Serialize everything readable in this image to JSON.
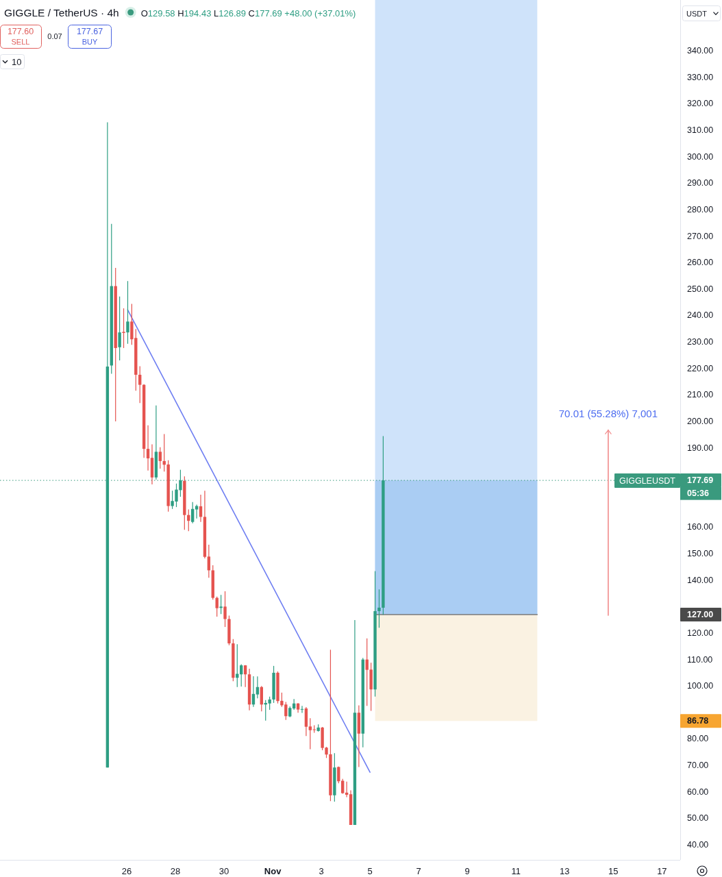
{
  "chart_data": {
    "type": "candlestick",
    "title": "GIGGLE / TetherUS · 4h",
    "x": [
      "--10-25T05:00",
      "--10-25T09:00",
      "--10-25T13:00",
      "--10-25T17:00",
      "--10-25T21:00",
      "--10-26T01:00",
      "--10-26T05:00",
      "--10-26T09:00",
      "--10-26T13:00",
      "--10-26T17:00",
      "--10-26T21:00",
      "--10-27T01:00",
      "--10-27T05:00",
      "--10-27T09:00",
      "--10-27T13:00",
      "--10-27T17:00",
      "--10-27T21:00",
      "--10-28T01:00",
      "--10-28T05:00",
      "--10-28T09:00",
      "--10-28T13:00",
      "--10-28T17:00",
      "--10-28T21:00",
      "--10-29T01:00",
      "--10-29T05:00",
      "--10-29T09:00",
      "--10-29T13:00",
      "--10-29T17:00",
      "--10-29T21:00",
      "--10-30T01:00",
      "--10-30T05:00",
      "--10-30T09:00",
      "--10-30T13:00",
      "--10-30T17:00",
      "--10-30T21:00",
      "--10-31T01:00",
      "--10-31T05:00",
      "--10-31T09:00",
      "--10-31T13:00",
      "--10-31T17:00",
      "--10-31T21:00",
      "--11-01T01:00",
      "--11-01T05:00",
      "--11-01T09:00",
      "--11-01T13:00",
      "--11-01T17:00",
      "--11-01T21:00",
      "--11-02T01:00",
      "--11-02T05:00",
      "--11-02T09:00",
      "--11-02T13:00",
      "--11-02T17:00",
      "--11-02T21:00",
      "--11-03T01:00",
      "--11-03T05:00",
      "--11-03T09:00",
      "--11-03T13:00",
      "--11-03T17:00",
      "--11-03T21:00",
      "--11-04T01:00",
      "--11-04T05:00",
      "--11-04T09:00",
      "--11-04T13:00",
      "--11-04T17:00",
      "--11-04T21:00",
      "--11-05T01:00",
      "--11-05T05:00",
      "--11-05T09:00",
      "--11-05T13:00"
    ],
    "ohlc": [
      [
        69.2,
        313.0,
        69.2,
        220.7
      ],
      [
        221.1,
        274.6,
        218.0,
        251.1
      ],
      [
        251.1,
        258.0,
        200.0,
        227.7
      ],
      [
        228.0,
        247.2,
        223.0,
        233.6
      ],
      [
        233.8,
        242.7,
        227.7,
        233.4
      ],
      [
        233.6,
        253.0,
        229.3,
        237.7
      ],
      [
        237.7,
        244.4,
        228.9,
        231.0
      ],
      [
        231.5,
        234.9,
        211.6,
        217.6
      ],
      [
        217.6,
        220.8,
        206.9,
        213.8
      ],
      [
        213.8,
        214.0,
        186.2,
        189.6
      ],
      [
        189.6,
        198.5,
        181.4,
        186.0
      ],
      [
        186.2,
        191.3,
        176.2,
        178.8
      ],
      [
        178.8,
        206.0,
        178.0,
        188.5
      ],
      [
        188.5,
        190.2,
        182.1,
        185.0
      ],
      [
        185.0,
        195.2,
        181.0,
        183.6
      ],
      [
        183.7,
        185.3,
        165.9,
        168.0
      ],
      [
        168.0,
        173.8,
        166.9,
        169.9
      ],
      [
        169.7,
        176.5,
        167.6,
        174.2
      ],
      [
        174.0,
        181.7,
        171.5,
        177.7
      ],
      [
        177.5,
        179.2,
        159.0,
        164.6
      ],
      [
        164.6,
        166.7,
        158.5,
        162.4
      ],
      [
        162.0,
        169.5,
        161.5,
        166.9
      ],
      [
        166.7,
        168.5,
        163.3,
        168.0
      ],
      [
        167.9,
        172.3,
        162.0,
        163.9
      ],
      [
        163.9,
        173.8,
        148.2,
        148.8
      ],
      [
        148.9,
        153.4,
        140.9,
        143.7
      ],
      [
        143.7,
        145.6,
        132.6,
        133.3
      ],
      [
        133.3,
        133.8,
        126.2,
        129.4
      ],
      [
        129.5,
        134.4,
        127.2,
        130.0
      ],
      [
        130.0,
        135.8,
        122.3,
        125.3
      ],
      [
        125.3,
        126.6,
        115.4,
        116.1
      ],
      [
        116.1,
        117.7,
        101.8,
        103.1
      ],
      [
        103.1,
        115.8,
        99.6,
        104.6
      ],
      [
        104.4,
        108.2,
        99.8,
        107.8
      ],
      [
        107.8,
        107.9,
        99.6,
        104.4
      ],
      [
        104.4,
        106.5,
        90.8,
        93.0
      ],
      [
        93.0,
        103.7,
        92.1,
        97.0
      ],
      [
        96.8,
        103.6,
        95.3,
        99.6
      ],
      [
        99.6,
        100.0,
        90.4,
        93.0
      ],
      [
        93.0,
        94.7,
        86.9,
        93.6
      ],
      [
        93.4,
        96.0,
        91.0,
        94.9
      ],
      [
        94.9,
        107.6,
        93.6,
        105.0
      ],
      [
        105.0,
        105.5,
        93.4,
        94.3
      ],
      [
        94.4,
        97.5,
        92.1,
        92.7
      ],
      [
        93.0,
        94.0,
        87.2,
        88.6
      ],
      [
        88.5,
        92.3,
        88.2,
        91.7
      ],
      [
        91.5,
        95.1,
        91.0,
        93.4
      ],
      [
        93.4,
        93.5,
        89.9,
        91.1
      ],
      [
        91.1,
        92.5,
        89.8,
        91.3
      ],
      [
        91.5,
        92.0,
        81.1,
        84.6
      ],
      [
        84.7,
        87.8,
        76.1,
        83.3
      ],
      [
        83.6,
        85.2,
        82.3,
        83.4
      ],
      [
        83.0,
        85.5,
        82.8,
        84.3
      ],
      [
        84.3,
        84.5,
        75.7,
        76.6
      ],
      [
        76.7,
        77.0,
        72.8,
        74.1
      ],
      [
        74.2,
        113.7,
        56.5,
        58.7
      ],
      [
        58.7,
        74.6,
        56.3,
        69.2
      ],
      [
        69.4,
        69.6,
        63.2,
        64.0
      ],
      [
        64.2,
        64.9,
        59.3,
        59.5
      ],
      [
        59.7,
        63.9,
        58.0,
        58.9
      ],
      [
        59.1,
        60.6,
        47.5,
        47.5
      ],
      [
        47.5,
        124.9,
        47.5,
        89.9
      ],
      [
        89.9,
        92.7,
        69.4,
        82.0
      ],
      [
        82.0,
        110.6,
        76.8,
        110.0
      ],
      [
        110.0,
        118.0,
        92.5,
        106.1
      ],
      [
        106.2,
        108.8,
        90.6,
        98.7
      ],
      [
        98.7,
        143.4,
        96.0,
        128.3
      ],
      [
        128.3,
        136.5,
        122.0,
        129.6
      ],
      [
        129.58,
        194.43,
        126.89,
        177.69
      ]
    ],
    "colors": [
      "#2e9e83",
      "#2e9e83",
      "#e5534f",
      "#2e9e83",
      "#e5534f",
      "#2e9e83",
      "#e5534f",
      "#e5534f",
      "#e5534f",
      "#e5534f",
      "#e5534f",
      "#e5534f",
      "#2e9e83",
      "#e5534f",
      "#e5534f",
      "#e5534f",
      "#2e9e83",
      "#2e9e83",
      "#2e9e83",
      "#e5534f",
      "#e5534f",
      "#2e9e83",
      "#2e9e83",
      "#e5534f",
      "#e5534f",
      "#e5534f",
      "#e5534f",
      "#e5534f",
      "#2e9e83",
      "#e5534f",
      "#e5534f",
      "#e5534f",
      "#2e9e83",
      "#2e9e83",
      "#e5534f",
      "#e5534f",
      "#2e9e83",
      "#2e9e83",
      "#e5534f",
      "#2e9e83",
      "#2e9e83",
      "#2e9e83",
      "#e5534f",
      "#e5534f",
      "#e5534f",
      "#2e9e83",
      "#2e9e83",
      "#e5534f",
      "#2e9e83",
      "#e5534f",
      "#e5534f",
      "#e5534f",
      "#2e9e83",
      "#e5534f",
      "#e5534f",
      "#e5534f",
      "#2e9e83",
      "#e5534f",
      "#e5534f",
      "#e5534f",
      "#e5534f",
      "#2e9e83",
      "#e5534f",
      "#2e9e83",
      "#e5534f",
      "#e5534f",
      "#2e9e83",
      "#2e9e83",
      "#2e9e83"
    ],
    "series": [
      {
        "type": "line",
        "x": [
          "--11-05T05:00",
          "--11-11T21:00"
        ],
        "values": [
          127,
          127
        ],
        "color": "#7a7a7a"
      },
      {
        "type": "line",
        "x": [
          "--10-26T01:00",
          "--11-05T00:00"
        ],
        "values": [
          242.1,
          67.4
        ],
        "color": "#6f7ff2"
      },
      {
        "type": "line",
        "x": [
          "--11-14T19:00",
          "--11-14T19:00"
        ],
        "values": [
          126.7,
          196.7
        ],
        "color": "#f28b8b"
      }
    ],
    "xlim": [
      "--10-20T19:00",
      "--11-17T18:00"
    ],
    "xticks": [
      {
        "value": "--10-26",
        "label": "26"
      },
      {
        "value": "--10-28",
        "label": "28"
      },
      {
        "value": "--10-30",
        "label": "30"
      },
      {
        "value": "--11-01",
        "label": "Nov"
      },
      {
        "value": "--11-03",
        "label": "3"
      },
      {
        "value": "--11-05",
        "label": "5"
      },
      {
        "value": "--11-07",
        "label": "7"
      },
      {
        "value": "--11-09",
        "label": "9"
      },
      {
        "value": "--11-11",
        "label": "11"
      },
      {
        "value": "--11-13",
        "label": "13"
      },
      {
        "value": "--11-15",
        "label": "15"
      },
      {
        "value": "--11-17",
        "label": "17"
      }
    ],
    "ylim": [
      34.3,
      359.2
    ],
    "yticks": [
      {
        "value": 40,
        "label": "40.00"
      },
      {
        "value": 50,
        "label": "50.00"
      },
      {
        "value": 60,
        "label": "60.00"
      },
      {
        "value": 70,
        "label": "70.00"
      },
      {
        "value": 80,
        "label": "80.00"
      },
      {
        "value": 100,
        "label": "100.00"
      },
      {
        "value": 110,
        "label": "110.00"
      },
      {
        "value": 120,
        "label": "120.00"
      },
      {
        "value": 140,
        "label": "140.00"
      },
      {
        "value": 150,
        "label": "150.00"
      },
      {
        "value": 160,
        "label": "160.00"
      },
      {
        "value": 190,
        "label": "190.00"
      },
      {
        "value": 200,
        "label": "200.00"
      },
      {
        "value": 210,
        "label": "210.00"
      },
      {
        "value": 220,
        "label": "220.00"
      },
      {
        "value": 230,
        "label": "230.00"
      },
      {
        "value": 240,
        "label": "240.00"
      },
      {
        "value": 250,
        "label": "250.00"
      },
      {
        "value": 260,
        "label": "260.00"
      },
      {
        "value": 270,
        "label": "270.00"
      },
      {
        "value": 280,
        "label": "280.00"
      },
      {
        "value": 290,
        "label": "290.00"
      },
      {
        "value": 300,
        "label": "300.00"
      },
      {
        "value": 310,
        "label": "310.00"
      },
      {
        "value": 320,
        "label": "320.00"
      },
      {
        "value": 330,
        "label": "330.00"
      },
      {
        "value": 340,
        "label": "340.00"
      }
    ],
    "bands": [
      {
        "axis": "y",
        "from": 127,
        "to": 359.2,
        "color": "#cfe3fa"
      },
      {
        "axis": "y",
        "from": 127,
        "to": 177.69,
        "color": "#aacdf3"
      },
      {
        "axis": "y",
        "from": 86.78,
        "to": 127,
        "color": "#faf2e2"
      }
    ],
    "ref_lines": [
      {
        "axis": "y",
        "value": 177.69,
        "label": "GIGGLEUSDT",
        "color": "#3a9a7e",
        "line_style": "dotted"
      }
    ],
    "annotations": [
      "O129.58 H194.43 L126.89 C177.69 +48.00 (+37.01%)",
      "177.60",
      "SELL",
      "0.07",
      "177.67",
      "BUY",
      "10",
      "USDT",
      "177.69",
      "05:36",
      "127.00",
      "86.78",
      {
        "text": "70.01 (55.28%) 7,001",
        "x": "--11-14T19:00",
        "y": 196.7
      }
    ]
  }
}
